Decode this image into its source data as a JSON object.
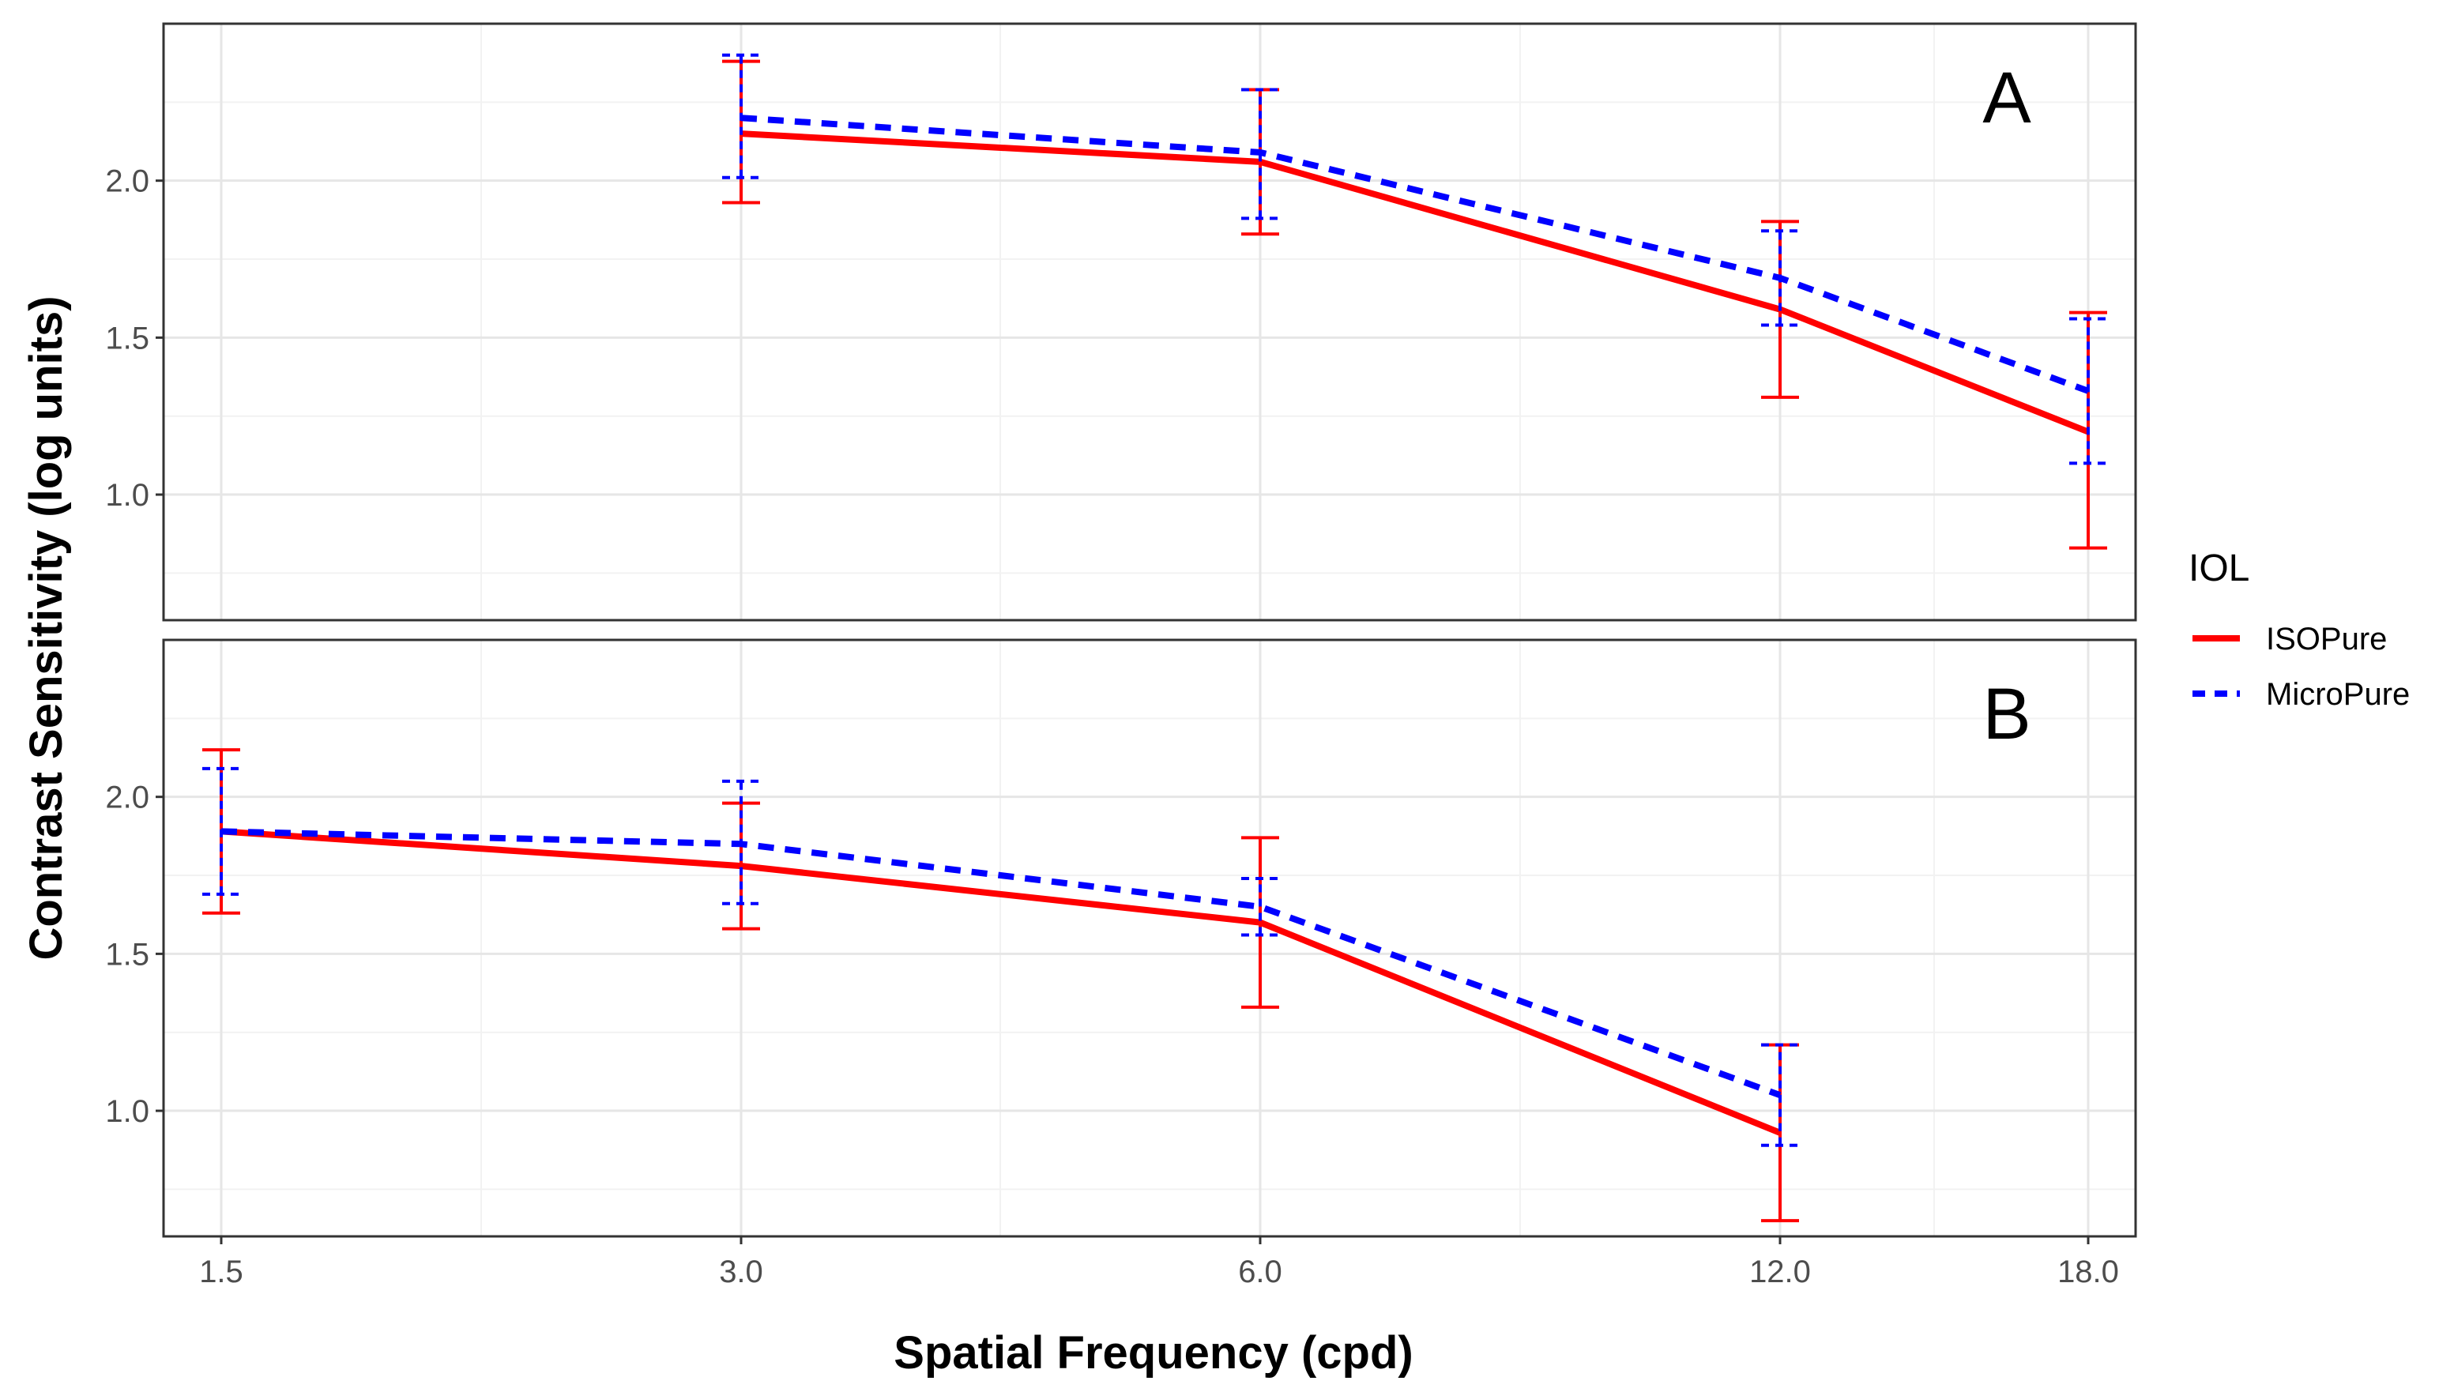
{
  "chart_data": {
    "type": "line",
    "xlabel": "Spatial Frequency (cpd)",
    "ylabel": "Contrast Sensitivity (log units)",
    "x_ticks": [
      "1.5",
      "3.0",
      "6.0",
      "12.0",
      "18.0"
    ],
    "y_ticks": [
      "1.0",
      "1.5",
      "2.0"
    ],
    "ylim": [
      0.6,
      2.5
    ],
    "grid": true,
    "legend": {
      "title": "IOL",
      "position": "right",
      "entries": [
        {
          "name": "ISOPure",
          "color": "#ff0000",
          "style": "solid"
        },
        {
          "name": "MicroPure",
          "color": "#0000ff",
          "style": "dashed"
        }
      ]
    },
    "panels": [
      {
        "label": "A",
        "series": [
          {
            "name": "ISOPure",
            "x": [
              "3.0",
              "6.0",
              "12.0",
              "18.0"
            ],
            "values": [
              2.15,
              2.06,
              1.59,
              1.2
            ],
            "lower": [
              1.93,
              1.83,
              1.31,
              0.83
            ],
            "upper": [
              2.38,
              2.29,
              1.87,
              1.58
            ]
          },
          {
            "name": "MicroPure",
            "x": [
              "3.0",
              "6.0",
              "12.0",
              "18.0"
            ],
            "values": [
              2.2,
              2.09,
              1.69,
              1.33
            ],
            "lower": [
              2.01,
              1.88,
              1.54,
              1.1
            ],
            "upper": [
              2.4,
              2.29,
              1.84,
              1.56
            ]
          }
        ]
      },
      {
        "label": "B",
        "series": [
          {
            "name": "ISOPure",
            "x": [
              "1.5",
              "3.0",
              "6.0",
              "12.0"
            ],
            "values": [
              1.89,
              1.78,
              1.6,
              0.93
            ],
            "lower": [
              1.63,
              1.58,
              1.33,
              0.65
            ],
            "upper": [
              2.15,
              1.98,
              1.87,
              1.21
            ]
          },
          {
            "name": "MicroPure",
            "x": [
              "1.5",
              "3.0",
              "6.0",
              "12.0"
            ],
            "values": [
              1.89,
              1.85,
              1.65,
              1.05
            ],
            "lower": [
              1.69,
              1.66,
              1.56,
              0.89
            ],
            "upper": [
              2.09,
              2.05,
              1.74,
              1.21
            ]
          }
        ]
      }
    ]
  }
}
